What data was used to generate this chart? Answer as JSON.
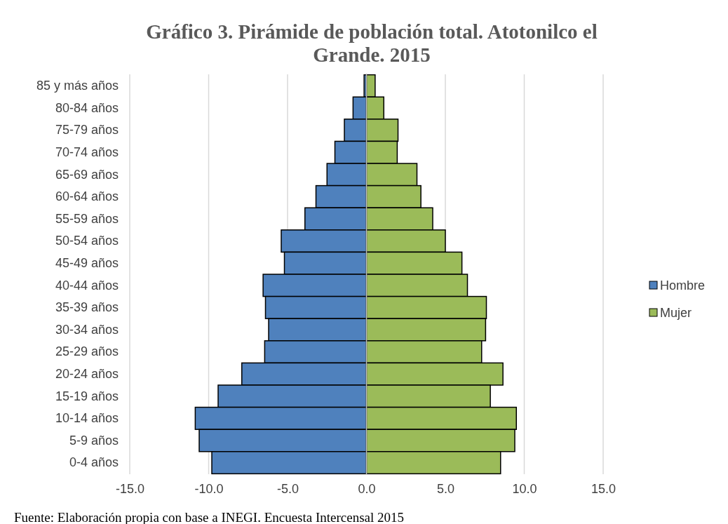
{
  "chart_data": {
    "type": "bar",
    "orientation": "horizontal",
    "title": "Gráfico 3.  Pirámide de población total. Atotonilco el Grande. 2015",
    "categories": [
      "85 y más años",
      "80-84 años",
      "75-79 años",
      "70-74 años",
      "65-69 años",
      "60-64 años",
      "55-59 años",
      "50-54 años",
      "45-49 años",
      "40-44 años",
      "35-39 años",
      "30-34 años",
      "25-29 años",
      "20-24 años",
      "15-19 años",
      "10-14 años",
      "5-9 años",
      "0-4 años"
    ],
    "series": [
      {
        "name": "Hombre",
        "color": "#4f81bd",
        "values": [
          -0.15,
          -0.85,
          -1.4,
          -2.0,
          -2.5,
          -3.2,
          -3.9,
          -5.4,
          -5.2,
          -6.55,
          -6.4,
          -6.2,
          -6.45,
          -7.9,
          -9.4,
          -10.85,
          -10.6,
          -9.8
        ]
      },
      {
        "name": "Mujer",
        "color": "#9bbb59",
        "values": [
          0.55,
          1.1,
          2.0,
          1.95,
          3.2,
          3.45,
          4.2,
          5.0,
          6.05,
          6.4,
          7.6,
          7.55,
          7.3,
          8.65,
          7.85,
          9.5,
          9.4,
          8.5
        ]
      }
    ],
    "xlim": [
      -15,
      15
    ],
    "xticks": [
      {
        "value": -15,
        "label": "-15.0"
      },
      {
        "value": -10,
        "label": "-10.0"
      },
      {
        "value": -5,
        "label": "-5.0"
      },
      {
        "value": 0,
        "label": "0.0"
      },
      {
        "value": 5,
        "label": "5.0"
      },
      {
        "value": 10,
        "label": "10.0"
      },
      {
        "value": 15,
        "label": "15.0"
      }
    ],
    "stacked": true,
    "grid": "x",
    "legend": "right",
    "annotations": [
      "Fuente: Elaboración propia con base a INEGI. Encuesta Intercensal 2015"
    ]
  }
}
